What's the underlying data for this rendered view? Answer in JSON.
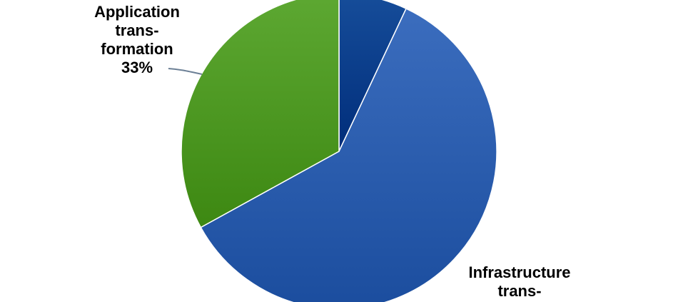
{
  "chart_data": {
    "type": "pie",
    "colors": {
      "other": "#083f8c",
      "infrastructure": "#2d5fb0",
      "application": "#4f9a24"
    },
    "slices": [
      {
        "key": "other",
        "value": 7,
        "label_lines": []
      },
      {
        "key": "infrastructure",
        "value": 60,
        "label_lines": [
          "Infrastructure",
          "trans-"
        ]
      },
      {
        "key": "application",
        "value": 33,
        "label_lines": [
          "Application",
          "trans-",
          "formation",
          "33%"
        ]
      }
    ]
  }
}
